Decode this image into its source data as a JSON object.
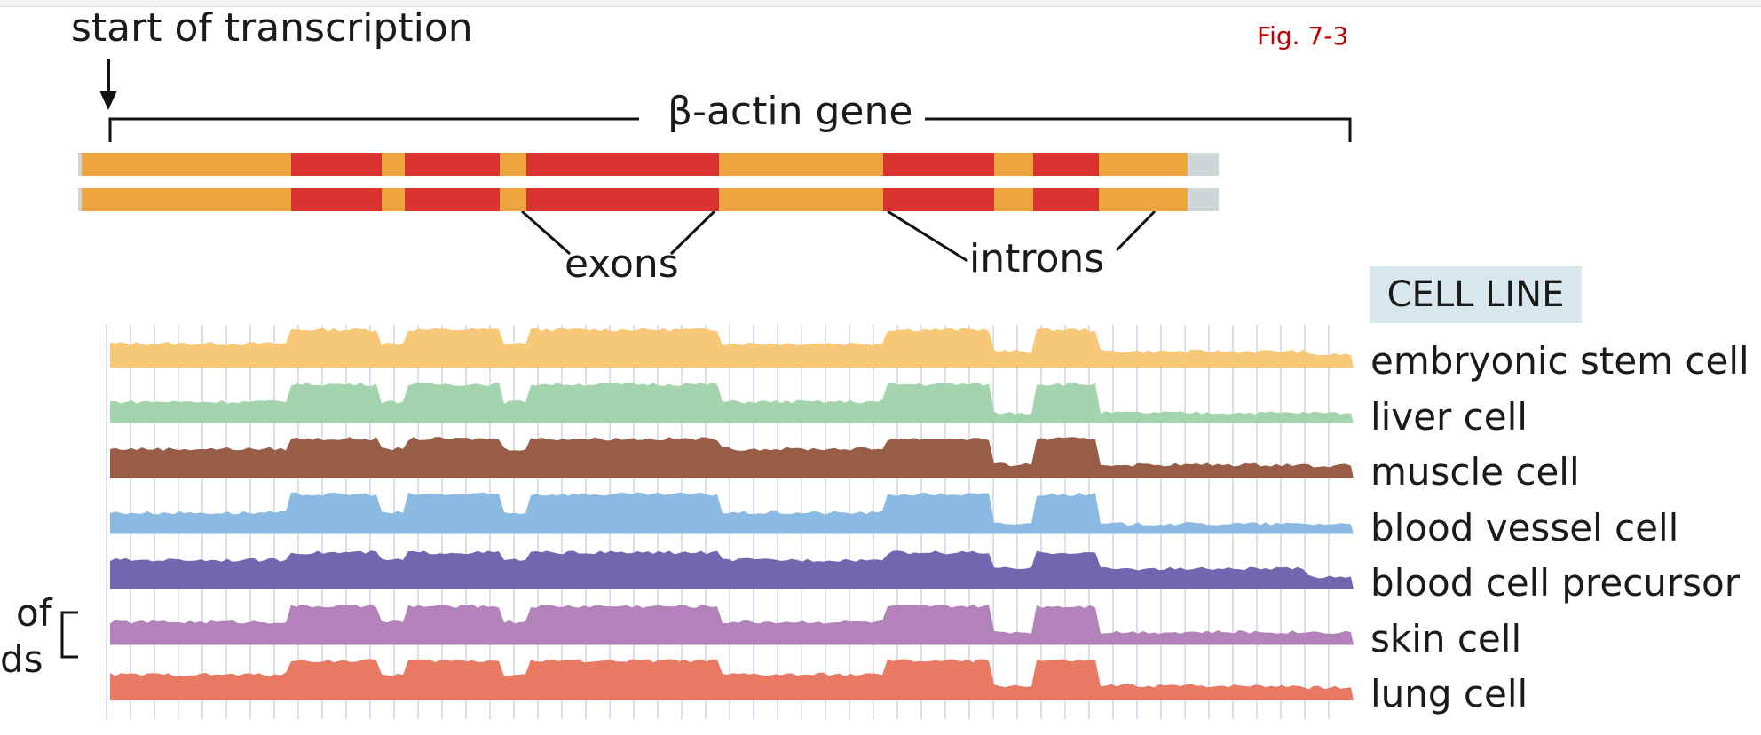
{
  "figure": {
    "start_label": "start of transcription",
    "gene_label": "β-actin gene",
    "fig_label": "Fig. 7-3",
    "exons_label": "exons",
    "introns_label": "introns",
    "cell_line_header": "CELL LINE",
    "bracket_labels": [
      "of",
      "ds"
    ]
  },
  "colors": {
    "exon": "#d9322f",
    "intron": "#eea53d",
    "flank": "#cfd6d8",
    "header_bg": "#d8e6ee",
    "fig_label": "#c00000",
    "gridline": "#cfd3e6"
  },
  "gene_segments": [
    {
      "kind": "flank",
      "start": 0,
      "end": 4
    },
    {
      "kind": "intron",
      "start": 4,
      "end": 240
    },
    {
      "kind": "exon",
      "start": 240,
      "end": 342
    },
    {
      "kind": "intron",
      "start": 342,
      "end": 368
    },
    {
      "kind": "exon",
      "start": 368,
      "end": 475
    },
    {
      "kind": "intron",
      "start": 475,
      "end": 505
    },
    {
      "kind": "exon",
      "start": 505,
      "end": 722
    },
    {
      "kind": "intron",
      "start": 722,
      "end": 907
    },
    {
      "kind": "exon",
      "start": 907,
      "end": 1032
    },
    {
      "kind": "intron",
      "start": 1032,
      "end": 1076
    },
    {
      "kind": "exon",
      "start": 1076,
      "end": 1150
    },
    {
      "kind": "intron",
      "start": 1150,
      "end": 1250
    },
    {
      "kind": "flank",
      "start": 1250,
      "end": 1285
    }
  ],
  "tracks": [
    {
      "name": "embryonic stem cell",
      "color": "#f6c878",
      "exon_level": 0.82,
      "intron_level": 0.52,
      "late_intron_level": 0.35
    },
    {
      "name": "liver cell",
      "color": "#a3d4ad",
      "exon_level": 0.84,
      "intron_level": 0.46,
      "late_intron_level": 0.22
    },
    {
      "name": "muscle cell",
      "color": "#975d47",
      "exon_level": 0.86,
      "intron_level": 0.64,
      "late_intron_level": 0.3
    },
    {
      "name": "blood vessel cell",
      "color": "#8ab9e2",
      "exon_level": 0.86,
      "intron_level": 0.46,
      "late_intron_level": 0.22
    },
    {
      "name": "blood cell precursor",
      "color": "#7266b0",
      "exon_level": 0.8,
      "intron_level": 0.64,
      "late_intron_level": 0.45
    },
    {
      "name": "skin cell",
      "color": "#b382bb",
      "exon_level": 0.84,
      "intron_level": 0.5,
      "late_intron_level": 0.28
    },
    {
      "name": "lung cell",
      "color": "#e87963",
      "exon_level": 0.86,
      "intron_level": 0.56,
      "late_intron_level": 0.32
    }
  ]
}
